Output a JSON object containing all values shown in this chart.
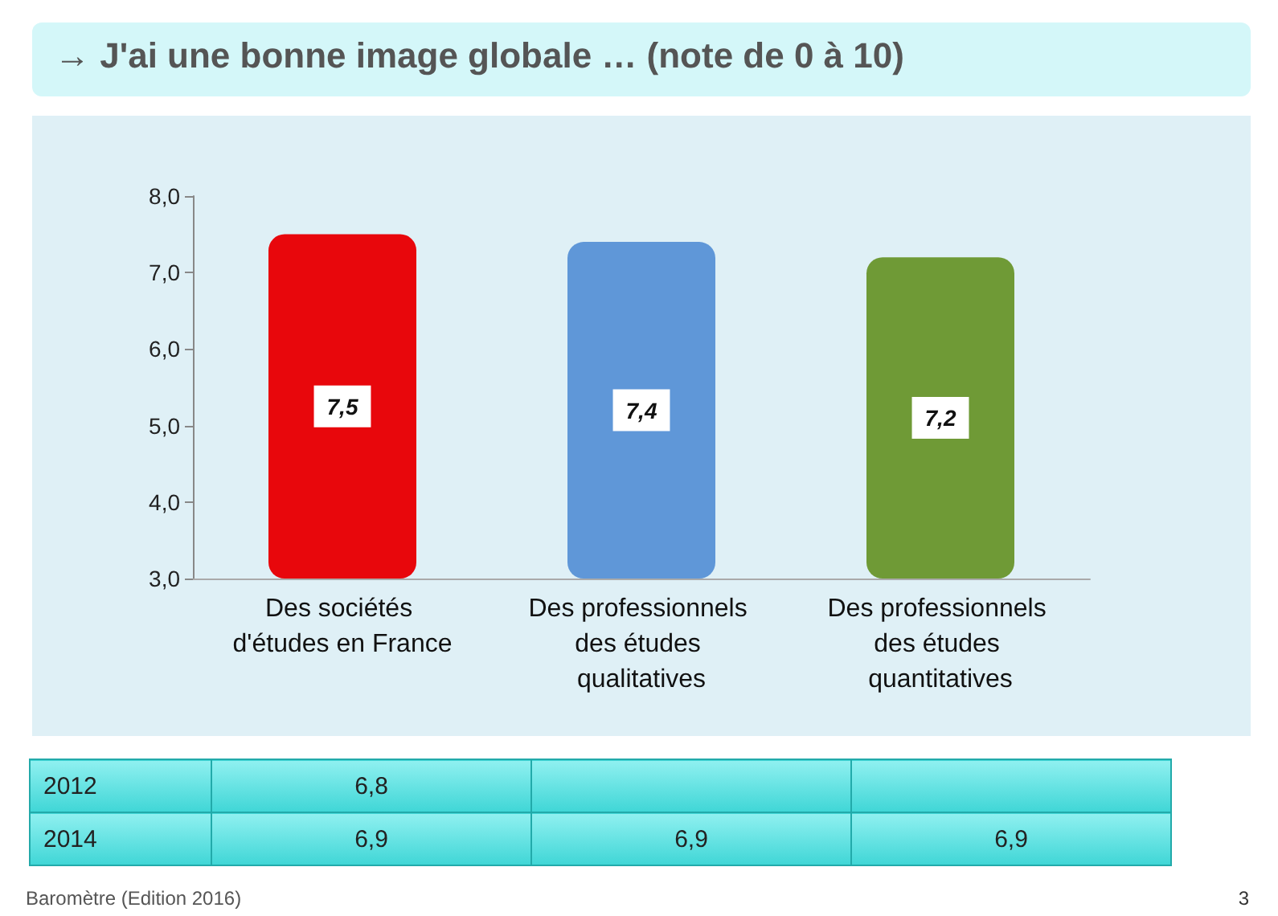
{
  "chart_data": {
    "type": "bar",
    "title": "→ J'ai une bonne image globale … (note de 0 à 10)",
    "categories": [
      "Des sociétés d'études en France",
      "Des professionnels des études qualitatives",
      "Des professionnels des études quantitatives"
    ],
    "values": [
      7.5,
      7.4,
      7.2
    ],
    "colors": [
      "#e8070c",
      "#5f97d8",
      "#6f9a36"
    ],
    "value_labels": [
      "7,5",
      "7,4",
      "7,2"
    ],
    "ylim": [
      3,
      8
    ],
    "yticks": [
      {
        "value": 3,
        "label": "3,0"
      },
      {
        "value": 4,
        "label": "4,0"
      },
      {
        "value": 5,
        "label": "5,0"
      },
      {
        "value": 6,
        "label": "6,0"
      },
      {
        "value": 7,
        "label": "7,0"
      },
      {
        "value": 8,
        "label": "8,0"
      }
    ],
    "grid": false,
    "annotations": [
      "2012",
      "6,8",
      "2014",
      "6,9",
      "6,9",
      "6,9",
      "Baromètre (Edition 2016)",
      "3"
    ]
  }
}
